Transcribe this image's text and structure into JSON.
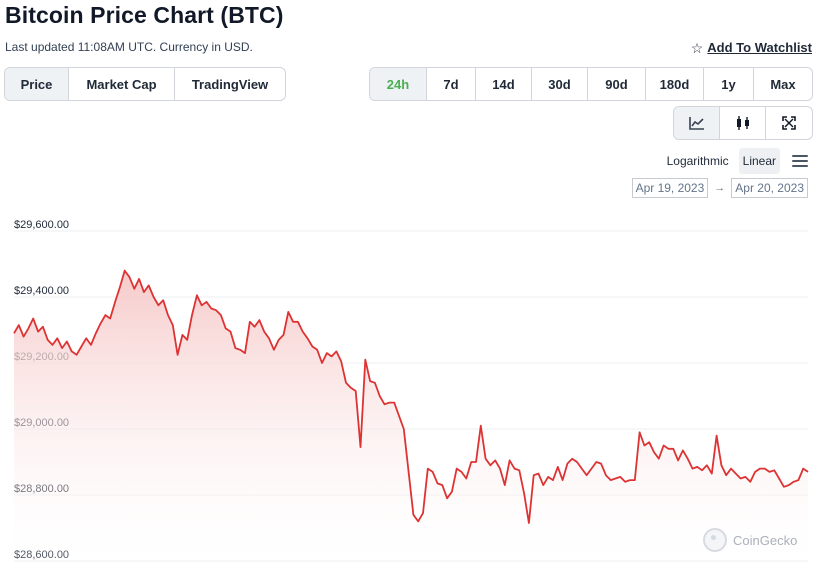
{
  "header": {
    "title": "Bitcoin Price Chart (BTC)",
    "subtitle": "Last updated 11:08AM UTC. Currency in USD.",
    "watchlist_label": "Add To Watchlist",
    "watchlist_icon": "star-outline-icon"
  },
  "view_tabs": [
    {
      "label": "Price",
      "active": true
    },
    {
      "label": "Market Cap",
      "active": false
    },
    {
      "label": "TradingView",
      "active": false
    }
  ],
  "range_tabs": [
    {
      "label": "24h",
      "active": true
    },
    {
      "label": "7d",
      "active": false
    },
    {
      "label": "14d",
      "active": false
    },
    {
      "label": "30d",
      "active": false
    },
    {
      "label": "90d",
      "active": false
    },
    {
      "label": "180d",
      "active": false
    },
    {
      "label": "1y",
      "active": false
    },
    {
      "label": "Max",
      "active": false
    }
  ],
  "chart_type_tabs": [
    {
      "icon": "line-chart-icon",
      "active": true
    },
    {
      "icon": "candlestick-icon",
      "active": false
    },
    {
      "icon": "expand-icon",
      "active": false
    }
  ],
  "scale": {
    "options": [
      "Logarithmic",
      "Linear"
    ],
    "active": "Linear",
    "menu_icon": "hamburger-menu-icon"
  },
  "date_range": {
    "from": "Apr 19, 2023",
    "to": "Apr 20, 2023",
    "arrow": "→"
  },
  "watermark": {
    "label": "CoinGecko",
    "icon": "coingecko-logo-icon"
  },
  "colors": {
    "line": "#dd3333",
    "fill_top": "#f6c7c7",
    "active_range": "#4caf50",
    "grid": "#eceff3"
  },
  "chart_data": {
    "type": "area",
    "title": "",
    "xlabel": "",
    "ylabel": "",
    "ylim": [
      28600,
      29600
    ],
    "yticks": [
      29600,
      29400,
      29200,
      29000,
      28800,
      28600
    ],
    "ytick_labels": [
      "$29,600.00",
      "$29,400.00",
      "$29,200.00",
      "$29,000.00",
      "$28,800.00",
      "$28,600.00"
    ],
    "grid": true,
    "series": [
      {
        "values": [
          29290,
          29315,
          29280,
          29305,
          29335,
          29295,
          29310,
          29270,
          29255,
          29275,
          29245,
          29265,
          29235,
          29225,
          29250,
          29275,
          29255,
          29290,
          29320,
          29345,
          29335,
          29385,
          29430,
          29480,
          29460,
          29425,
          29455,
          29415,
          29435,
          29400,
          29375,
          29390,
          29345,
          29315,
          29225,
          29285,
          29270,
          29345,
          29405,
          29375,
          29385,
          29365,
          29360,
          29345,
          29305,
          29295,
          29245,
          29240,
          29230,
          29325,
          29310,
          29330,
          29295,
          29275,
          29240,
          29270,
          29285,
          29355,
          29325,
          29325,
          29295,
          29275,
          29250,
          29240,
          29200,
          29230,
          29220,
          29235,
          29205,
          29140,
          29125,
          29115,
          28945,
          29210,
          29145,
          29140,
          29100,
          29075,
          29080,
          29080,
          29040,
          29000,
          28870,
          28740,
          28720,
          28745,
          28880,
          28870,
          28835,
          28830,
          28790,
          28810,
          28880,
          28870,
          28850,
          28900,
          28900,
          29010,
          28910,
          28890,
          28905,
          28880,
          28830,
          28905,
          28880,
          28875,
          28805,
          28715,
          28860,
          28865,
          28830,
          28855,
          28845,
          28885,
          28845,
          28895,
          28910,
          28900,
          28880,
          28860,
          28880,
          28900,
          28895,
          28860,
          28845,
          28850,
          28855,
          28840,
          28845,
          28845,
          28990,
          28950,
          28960,
          28930,
          28910,
          28950,
          28940,
          28940,
          28905,
          28935,
          28910,
          28880,
          28885,
          28875,
          28890,
          28865,
          28980,
          28890,
          28860,
          28880,
          28865,
          28850,
          28855,
          28840,
          28870,
          28880,
          28880,
          28870,
          28875,
          28850,
          28825,
          28830,
          28840,
          28845,
          28880,
          28870
        ]
      }
    ]
  }
}
